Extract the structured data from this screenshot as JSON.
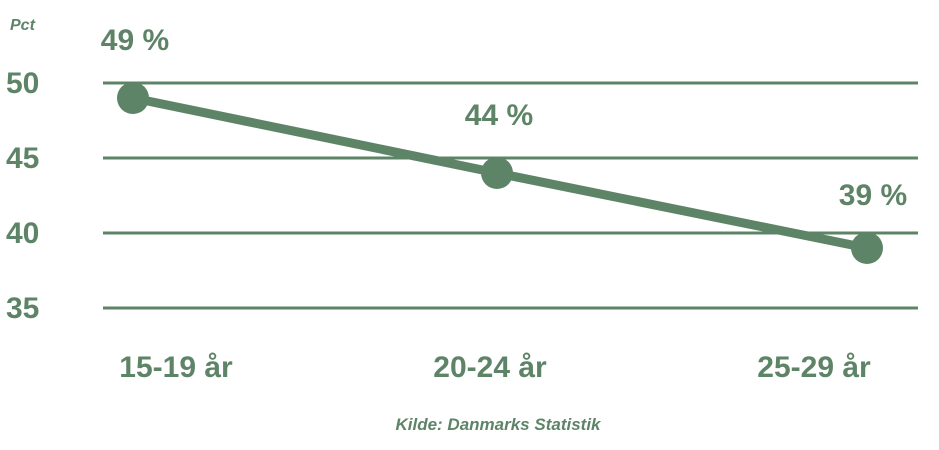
{
  "chart_data": {
    "type": "line",
    "unit_label": "Pct",
    "categories": [
      "15-19 år",
      "20-24 år",
      "25-29 år"
    ],
    "series": [
      {
        "values": [
          49,
          44,
          39
        ],
        "data_labels": [
          "49 %",
          "44 %",
          "39 %"
        ]
      }
    ],
    "y_ticks": [
      35,
      40,
      45,
      50
    ],
    "ylim": [
      35,
      50
    ],
    "grid": true,
    "source": "Kilde: Danmarks Statistik"
  },
  "colors": {
    "accent": "#5e8467",
    "grid": "#5e8467"
  }
}
